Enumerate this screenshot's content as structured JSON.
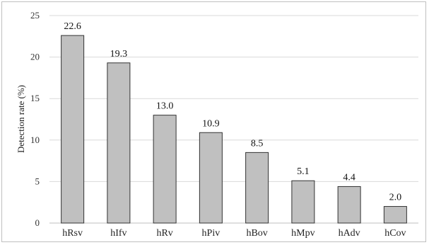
{
  "chart_data": {
    "type": "bar",
    "title": "",
    "xlabel": "",
    "ylabel": "Detection rate (%)",
    "categories": [
      "hRsv",
      "hIfv",
      "hRv",
      "hPiv",
      "hBov",
      "hMpv",
      "hAdv",
      "hCov"
    ],
    "values": [
      22.6,
      19.3,
      13.0,
      10.9,
      8.5,
      5.1,
      4.4,
      2.0
    ],
    "value_labels": [
      "22.6",
      "19.3",
      "13.0",
      "10.9",
      "8.5",
      "5.1",
      "4.4",
      "2.0"
    ],
    "ylim": [
      0,
      25
    ],
    "yticks": [
      "0",
      "5",
      "10",
      "15",
      "20",
      "25"
    ],
    "grid": true,
    "legend": "none",
    "colors": {
      "bar_fill": "#c0c0c0",
      "bar_stroke": "#333333",
      "grid": "#d9d9d9",
      "axis": "#bfbfbf"
    }
  }
}
